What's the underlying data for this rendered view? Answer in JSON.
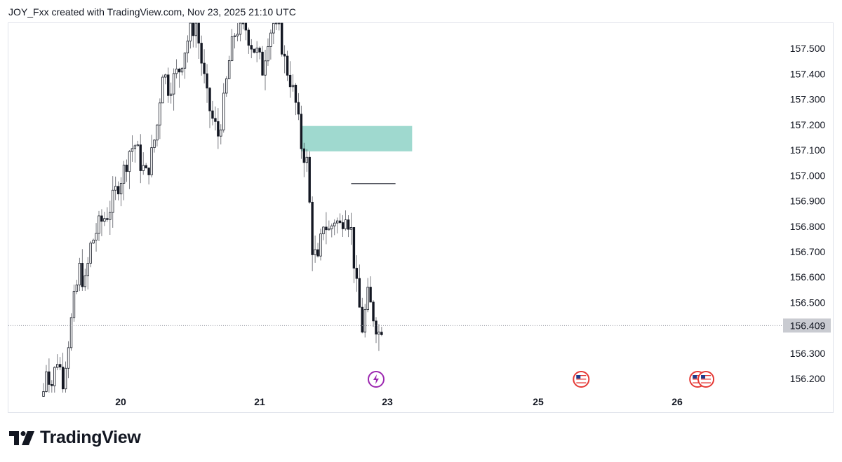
{
  "header": {
    "attribution": "JOY_Fxx created with TradingView.com, Nov 23, 2025 21:10 UTC"
  },
  "footer": {
    "brand": "TradingView"
  },
  "colors": {
    "candle": "#131722",
    "zone": "#9fd9cf",
    "current_line": "#9598a1",
    "label_bg": "#c9cbd1",
    "event_purple": "#9c27b0",
    "event_red": "#e53935"
  },
  "chart_data": {
    "type": "candlestick",
    "ylim": [
      156.145,
      157.6
    ],
    "y_ticks": [
      "157.500",
      "157.400",
      "157.300",
      "157.200",
      "157.100",
      "157.000",
      "156.900",
      "156.800",
      "156.700",
      "156.600",
      "156.500",
      "156.300",
      "156.200"
    ],
    "x_ticks": [
      "20",
      "21",
      "23",
      "25",
      "26"
    ],
    "current_price": "156.409",
    "zone": {
      "price_low": 157.095,
      "price_high": 157.195,
      "start_candle": 93,
      "end_candle": 133
    },
    "level_line": {
      "price": 156.968,
      "start_candle": 111,
      "end_candle": 127
    },
    "events": [
      {
        "type": "lightning-icon",
        "candle": 120
      },
      {
        "type": "us-flag-icon",
        "candle": 194
      },
      {
        "type": "us-flag-icon",
        "candle": 236
      },
      {
        "type": "us-flag-icon",
        "candle": 239
      }
    ],
    "close_anchors": [
      [
        0,
        156.15
      ],
      [
        1,
        156.25
      ],
      [
        3,
        156.18
      ],
      [
        5,
        156.28
      ],
      [
        7,
        156.2
      ],
      [
        9,
        156.35
      ],
      [
        11,
        156.5
      ],
      [
        13,
        156.63
      ],
      [
        15,
        156.57
      ],
      [
        17,
        156.72
      ],
      [
        19,
        156.78
      ],
      [
        21,
        156.82
      ],
      [
        23,
        156.85
      ],
      [
        25,
        156.9
      ],
      [
        27,
        156.97
      ],
      [
        29,
        157.02
      ],
      [
        31,
        157.1
      ],
      [
        33,
        157.12
      ],
      [
        35,
        157.05
      ],
      [
        37,
        157.0
      ],
      [
        39,
        157.08
      ],
      [
        41,
        157.2
      ],
      [
        43,
        157.42
      ],
      [
        45,
        157.35
      ],
      [
        47,
        157.38
      ],
      [
        49,
        157.42
      ],
      [
        51,
        157.5
      ],
      [
        53,
        157.57
      ],
      [
        55,
        157.6
      ],
      [
        57,
        157.45
      ],
      [
        59,
        157.3
      ],
      [
        61,
        157.22
      ],
      [
        63,
        157.16
      ],
      [
        65,
        157.28
      ],
      [
        67,
        157.45
      ],
      [
        69,
        157.56
      ],
      [
        71,
        157.6
      ],
      [
        73,
        157.58
      ],
      [
        75,
        157.52
      ],
      [
        77,
        157.48
      ],
      [
        79,
        157.42
      ],
      [
        81,
        157.55
      ],
      [
        83,
        157.6
      ],
      [
        85,
        157.58
      ],
      [
        87,
        157.45
      ],
      [
        89,
        157.38
      ],
      [
        91,
        157.28
      ],
      [
        93,
        157.12
      ],
      [
        95,
        157.05
      ],
      [
        97,
        156.72
      ],
      [
        99,
        156.65
      ],
      [
        101,
        156.82
      ],
      [
        103,
        156.78
      ],
      [
        105,
        156.83
      ],
      [
        107,
        156.8
      ],
      [
        109,
        156.87
      ],
      [
        111,
        156.78
      ],
      [
        113,
        156.55
      ],
      [
        115,
        156.4
      ],
      [
        117,
        156.52
      ],
      [
        119,
        156.45
      ],
      [
        121,
        156.38
      ],
      [
        122,
        156.41
      ]
    ]
  }
}
